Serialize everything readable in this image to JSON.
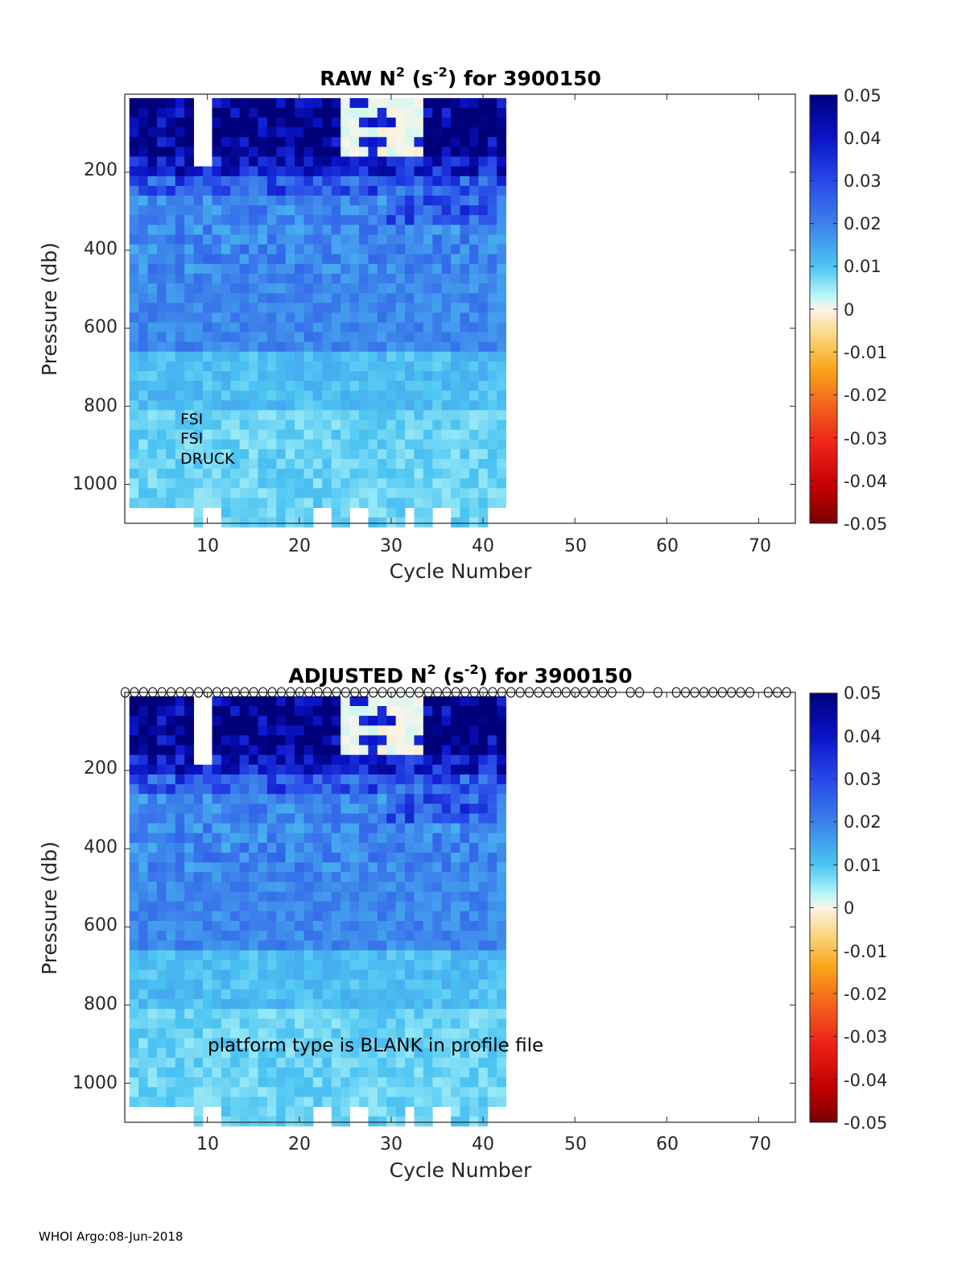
{
  "footer": "WHOI Argo:08-Jun-2018",
  "colorbar": {
    "ticks": [
      "0.05",
      "0.04",
      "0.03",
      "0.02",
      "0.01",
      "0",
      "-0.01",
      "-0.02",
      "-0.03",
      "-0.04",
      "-0.05"
    ],
    "range": [
      -0.05,
      0.05
    ]
  },
  "chart_data": [
    {
      "type": "heatmap",
      "title_main": "RAW N",
      "title_sup1": "2",
      "title_mid": " (s",
      "title_sup2": "-2",
      "title_end": ") for 3900150",
      "xlabel": "Cycle Number",
      "ylabel": "Pressure (db)",
      "xlim": [
        1,
        74
      ],
      "ylim": [
        1100,
        0
      ],
      "xticks": [
        "10",
        "20",
        "30",
        "40",
        "50",
        "60",
        "70"
      ],
      "yticks": [
        "200",
        "400",
        "600",
        "800",
        "1000"
      ],
      "annotation_lines": [
        "FSI",
        "FSI",
        "DRUCK"
      ],
      "cycles_with_data": [
        2,
        42
      ],
      "value_range": [
        -0.05,
        0.05
      ]
    },
    {
      "type": "heatmap",
      "title_main": "ADJUSTED N",
      "title_sup1": "2",
      "title_mid": " (s",
      "title_sup2": "-2",
      "title_end": ") for 3900150",
      "xlabel": "Cycle Number",
      "ylabel": "Pressure (db)",
      "xlim": [
        1,
        74
      ],
      "ylim": [
        1100,
        0
      ],
      "xticks": [
        "10",
        "20",
        "30",
        "40",
        "50",
        "60",
        "70"
      ],
      "yticks": [
        "200",
        "400",
        "600",
        "800",
        "1000"
      ],
      "annotation_lines": [
        "platform type is BLANK in profile file"
      ],
      "qc_marker": "o",
      "qc_marker_cycles": [
        1,
        2,
        3,
        4,
        5,
        6,
        7,
        8,
        9,
        10,
        11,
        12,
        13,
        14,
        15,
        16,
        17,
        18,
        19,
        20,
        21,
        22,
        23,
        24,
        25,
        26,
        27,
        28,
        29,
        30,
        31,
        32,
        33,
        34,
        35,
        36,
        37,
        38,
        39,
        40,
        41,
        42,
        43,
        44,
        45,
        46,
        47,
        48,
        49,
        50,
        51,
        52,
        53,
        54,
        56,
        57,
        59,
        61,
        62,
        63,
        64,
        65,
        66,
        67,
        68,
        69,
        71,
        72,
        73
      ],
      "cycles_with_data": [
        2,
        42
      ],
      "value_range": [
        -0.05,
        0.05
      ]
    }
  ]
}
